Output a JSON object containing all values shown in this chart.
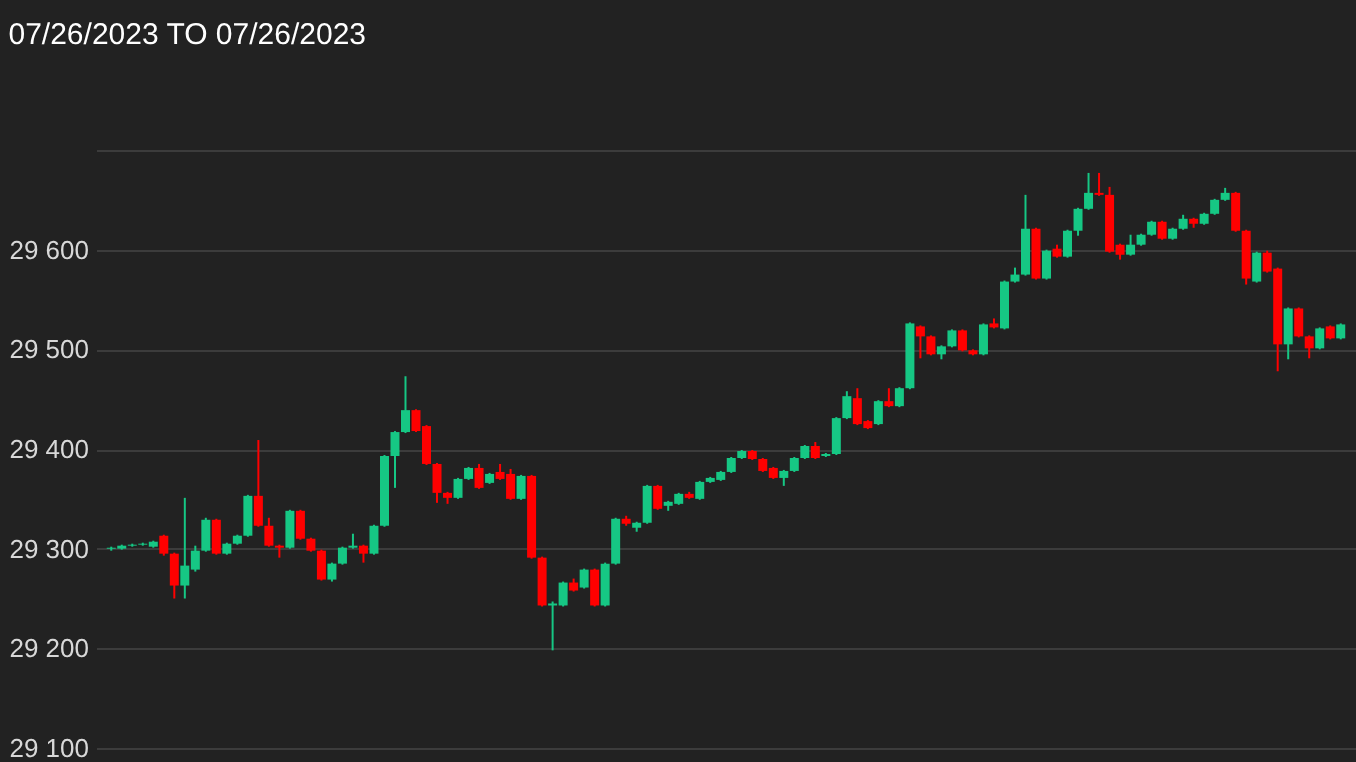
{
  "chart_data": {
    "type": "candlestick",
    "title": "07/26/2023 TO 07/26/2023",
    "categories": [
      null,
      null,
      null,
      null,
      null,
      null,
      null,
      null,
      null,
      null,
      null,
      null,
      null,
      null,
      null,
      null,
      null,
      null,
      null,
      null,
      null,
      null,
      null,
      null,
      null,
      null,
      null,
      null,
      null,
      null,
      null,
      null,
      null,
      null,
      null,
      null,
      null,
      null,
      null,
      null,
      null,
      null,
      null,
      null,
      null,
      null,
      null,
      null,
      null,
      null,
      null,
      null,
      null,
      null,
      null,
      null,
      null,
      null,
      null,
      null,
      null,
      null,
      null,
      null,
      null,
      null,
      null,
      null,
      null,
      null,
      null,
      null,
      null,
      null,
      null,
      null,
      null,
      null,
      null,
      null,
      null,
      null,
      null,
      null,
      null,
      null,
      null,
      null,
      null,
      null,
      null,
      null,
      null,
      null,
      null,
      null,
      null,
      null,
      null,
      null,
      null,
      null,
      null,
      null,
      null,
      null,
      null,
      null,
      null,
      null,
      null,
      null,
      null,
      null,
      null,
      null,
      null,
      null
    ],
    "ohlc": [
      [
        29300,
        29302,
        29298,
        29301
      ],
      [
        29300,
        29304,
        29299,
        29303
      ],
      [
        29303,
        29305,
        29302,
        29304
      ],
      [
        29304,
        29306,
        29303,
        29305
      ],
      [
        29302,
        29308,
        29301,
        29307
      ],
      [
        29313,
        29314,
        29293,
        29295
      ],
      [
        29295,
        29296,
        29250,
        29263
      ],
      [
        29263,
        29351,
        29250,
        29283
      ],
      [
        29279,
        29303,
        29277,
        29298
      ],
      [
        29298,
        29331,
        29297,
        29329
      ],
      [
        29329,
        29330,
        29294,
        29295
      ],
      [
        29295,
        29306,
        29294,
        29305
      ],
      [
        29305,
        29314,
        29304,
        29313
      ],
      [
        29313,
        29354,
        29312,
        29353
      ],
      [
        29353,
        29409,
        29322,
        29323
      ],
      [
        29323,
        29331,
        29302,
        29303
      ],
      [
        29303,
        29304,
        29291,
        29301
      ],
      [
        29301,
        29339,
        29300,
        29338
      ],
      [
        29338,
        29339,
        29309,
        29310
      ],
      [
        29310,
        29311,
        29297,
        29298
      ],
      [
        29298,
        29299,
        29268,
        29269
      ],
      [
        29269,
        29286,
        29267,
        29285
      ],
      [
        29285,
        29302,
        29284,
        29301
      ],
      [
        29301,
        29315,
        29300,
        29303
      ],
      [
        29303,
        29304,
        29286,
        29295
      ],
      [
        29295,
        29324,
        29294,
        29323
      ],
      [
        29323,
        29394,
        29322,
        29393
      ],
      [
        29393,
        29418,
        29361,
        29417
      ],
      [
        29417,
        29473,
        29416,
        29439
      ],
      [
        29439,
        29440,
        29417,
        29418
      ],
      [
        29423,
        29424,
        29384,
        29385
      ],
      [
        29385,
        29386,
        29346,
        29356
      ],
      [
        29356,
        29357,
        29345,
        29351
      ],
      [
        29351,
        29371,
        29350,
        29370
      ],
      [
        29370,
        29382,
        29369,
        29381
      ],
      [
        29381,
        29385,
        29360,
        29361
      ],
      [
        29366,
        29376,
        29365,
        29375
      ],
      [
        29377,
        29385,
        29369,
        29370
      ],
      [
        29375,
        29380,
        29349,
        29350
      ],
      [
        29350,
        29374,
        29349,
        29373
      ],
      [
        29373,
        29374,
        29290,
        29291
      ],
      [
        29291,
        29292,
        29242,
        29243
      ],
      [
        29243,
        29247,
        29198,
        29245
      ],
      [
        29243,
        29267,
        29242,
        29266
      ],
      [
        29266,
        29270,
        29257,
        29258
      ],
      [
        29261,
        29280,
        29260,
        29279
      ],
      [
        29279,
        29280,
        29242,
        29243
      ],
      [
        29243,
        29286,
        29242,
        29285
      ],
      [
        29285,
        29331,
        29284,
        29330
      ],
      [
        29330,
        29333,
        29323,
        29325
      ],
      [
        29321,
        29327,
        29317,
        29326
      ],
      [
        29326,
        29364,
        29325,
        29363
      ],
      [
        29363,
        29364,
        29339,
        29340
      ],
      [
        29343,
        29348,
        29338,
        29347
      ],
      [
        29345,
        29356,
        29344,
        29355
      ],
      [
        29355,
        29357,
        29350,
        29351
      ],
      [
        29350,
        29368,
        29349,
        29367
      ],
      [
        29367,
        29372,
        29366,
        29371
      ],
      [
        29369,
        29378,
        29368,
        29377
      ],
      [
        29377,
        29392,
        29376,
        29391
      ],
      [
        29391,
        29399,
        29390,
        29398
      ],
      [
        29398,
        29399,
        29389,
        29390
      ],
      [
        29390,
        29391,
        29377,
        29378
      ],
      [
        29381,
        29382,
        29370,
        29371
      ],
      [
        29371,
        29379,
        29363,
        29378
      ],
      [
        29378,
        29392,
        29377,
        29391
      ],
      [
        29391,
        29404,
        29390,
        29403
      ],
      [
        29403,
        29407,
        29390,
        29391
      ],
      [
        29393,
        29396,
        29392,
        29395
      ],
      [
        29395,
        29432,
        29394,
        29431
      ],
      [
        29431,
        29458,
        29430,
        29453
      ],
      [
        29451,
        29461,
        29424,
        29425
      ],
      [
        29428,
        29429,
        29420,
        29421
      ],
      [
        29425,
        29449,
        29424,
        29448
      ],
      [
        29448,
        29461,
        29442,
        29443
      ],
      [
        29443,
        29462,
        29442,
        29461
      ],
      [
        29461,
        29527,
        29460,
        29526
      ],
      [
        29523,
        29524,
        29491,
        29513
      ],
      [
        29513,
        29514,
        29494,
        29495
      ],
      [
        29495,
        29504,
        29490,
        29503
      ],
      [
        29503,
        29520,
        29502,
        29519
      ],
      [
        29519,
        29520,
        29498,
        29499
      ],
      [
        29499,
        29500,
        29494,
        29495
      ],
      [
        29495,
        29526,
        29494,
        29525
      ],
      [
        29526,
        29531,
        29521,
        29522
      ],
      [
        29521,
        29569,
        29520,
        29568
      ],
      [
        29568,
        29582,
        29567,
        29575
      ],
      [
        29575,
        29655,
        29574,
        29621
      ],
      [
        29621,
        29622,
        29570,
        29571
      ],
      [
        29571,
        29600,
        29570,
        29599
      ],
      [
        29601,
        29605,
        29592,
        29593
      ],
      [
        29593,
        29620,
        29592,
        29619
      ],
      [
        29619,
        29642,
        29614,
        29641
      ],
      [
        29641,
        29677,
        29640,
        29657
      ],
      [
        29657,
        29677,
        29654,
        29655
      ],
      [
        29655,
        29663,
        29597,
        29598
      ],
      [
        29605,
        29606,
        29590,
        29595
      ],
      [
        29595,
        29615,
        29594,
        29605
      ],
      [
        29605,
        29616,
        29604,
        29615
      ],
      [
        29615,
        29629,
        29614,
        29628
      ],
      [
        29628,
        29629,
        29610,
        29611
      ],
      [
        29611,
        29622,
        29610,
        29621
      ],
      [
        29621,
        29635,
        29620,
        29631
      ],
      [
        29631,
        29632,
        29622,
        29626
      ],
      [
        29626,
        29637,
        29625,
        29636
      ],
      [
        29636,
        29651,
        29635,
        29650
      ],
      [
        29650,
        29662,
        29649,
        29657
      ],
      [
        29657,
        29658,
        29618,
        29619
      ],
      [
        29619,
        29620,
        29565,
        29571
      ],
      [
        29568,
        29598,
        29567,
        29597
      ],
      [
        29597,
        29599,
        29577,
        29578
      ],
      [
        29581,
        29582,
        29478,
        29505
      ],
      [
        29505,
        29542,
        29490,
        29541
      ],
      [
        29541,
        29542,
        29512,
        29513
      ],
      [
        29513,
        29514,
        29491,
        29501
      ],
      [
        29501,
        29522,
        29500,
        29521
      ],
      [
        29523,
        29524,
        29510,
        29511
      ],
      [
        29511,
        29526,
        29510,
        29525
      ]
    ],
    "colors": [
      "#16c784",
      "#16c784",
      "#16c784",
      "#16c784",
      "#16c784",
      "#ff0000",
      "#ff0000",
      "#16c784",
      "#16c784",
      "#16c784",
      "#ff0000",
      "#16c784",
      "#16c784",
      "#16c784",
      "#ff0000",
      "#ff0000",
      "#ff0000",
      "#16c784",
      "#ff0000",
      "#ff0000",
      "#ff0000",
      "#16c784",
      "#16c784",
      "#16c784",
      "#ff0000",
      "#16c784",
      "#16c784",
      "#16c784",
      "#16c784",
      "#ff0000",
      "#ff0000",
      "#ff0000",
      "#ff0000",
      "#16c784",
      "#16c784",
      "#ff0000",
      "#16c784",
      "#ff0000",
      "#ff0000",
      "#16c784",
      "#ff0000",
      "#ff0000",
      "#16c784",
      "#16c784",
      "#ff0000",
      "#16c784",
      "#ff0000",
      "#16c784",
      "#16c784",
      "#ff0000",
      "#16c784",
      "#16c784",
      "#ff0000",
      "#16c784",
      "#16c784",
      "#ff0000",
      "#16c784",
      "#16c784",
      "#16c784",
      "#16c784",
      "#16c784",
      "#ff0000",
      "#ff0000",
      "#ff0000",
      "#16c784",
      "#16c784",
      "#16c784",
      "#ff0000",
      "#16c784",
      "#16c784",
      "#16c784",
      "#ff0000",
      "#ff0000",
      "#16c784",
      "#ff0000",
      "#16c784",
      "#16c784",
      "#ff0000",
      "#ff0000",
      "#16c784",
      "#16c784",
      "#ff0000",
      "#ff0000",
      "#16c784",
      "#ff0000",
      "#16c784",
      "#16c784",
      "#16c784",
      "#ff0000",
      "#16c784",
      "#ff0000",
      "#16c784",
      "#16c784",
      "#16c784",
      "#ff0000",
      "#ff0000",
      "#ff0000",
      "#16c784",
      "#16c784",
      "#16c784",
      "#ff0000",
      "#16c784",
      "#16c784",
      "#ff0000",
      "#16c784",
      "#16c784",
      "#16c784",
      "#ff0000",
      "#ff0000",
      "#16c784",
      "#ff0000",
      "#ff0000",
      "#16c784",
      "#ff0000",
      "#ff0000",
      "#16c784",
      "#ff0000",
      "#16c784"
    ],
    "ylim": [
      29096,
      29700
    ],
    "yticks": [
      {
        "value": 29100,
        "label": "29 100"
      },
      {
        "value": 29200,
        "label": "29 200"
      },
      {
        "value": 29300,
        "label": "29 300"
      },
      {
        "value": 29400,
        "label": "29 400"
      },
      {
        "value": 29500,
        "label": "29 500"
      },
      {
        "value": 29600,
        "label": "29 600"
      },
      {
        "value": 29700,
        "label": null
      }
    ],
    "grid": "y"
  }
}
